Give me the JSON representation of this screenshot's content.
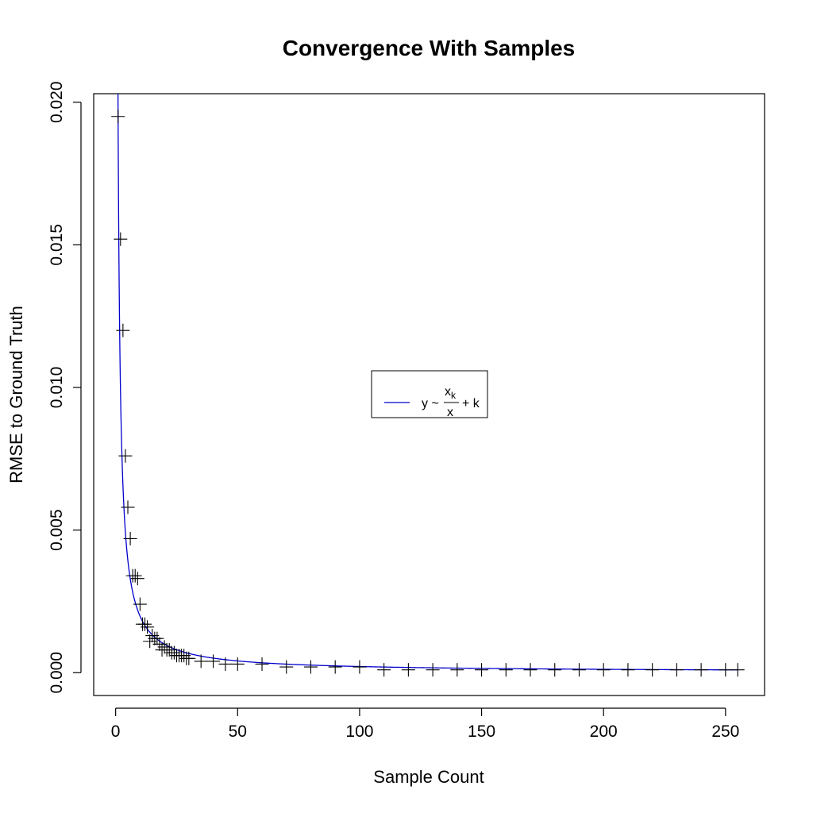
{
  "chart_data": {
    "type": "scatter",
    "title": "Convergence With Samples",
    "xlabel": "Sample Count",
    "ylabel": "RMSE to Ground Truth",
    "xlim": [
      -9,
      266
    ],
    "ylim": [
      -0.0008,
      0.0203
    ],
    "x_ticks": [
      0,
      50,
      100,
      150,
      200,
      250
    ],
    "x_tick_labels": [
      "0",
      "50",
      "100",
      "150",
      "200",
      "250"
    ],
    "y_ticks": [
      0.0,
      0.005,
      0.01,
      0.015,
      0.02
    ],
    "y_tick_labels": [
      "0.000",
      "0.005",
      "0.010",
      "0.015",
      "0.020"
    ],
    "grid": false,
    "legend_position": "center-right",
    "points_color": "#000000",
    "series": [
      {
        "marker": "plus",
        "color": "#000000",
        "x": [
          1,
          2,
          3,
          4,
          5,
          6,
          7,
          8,
          9,
          10,
          11,
          12,
          13,
          14,
          15,
          16,
          17,
          18,
          19,
          20,
          21,
          22,
          23,
          24,
          25,
          26,
          27,
          28,
          29,
          30,
          35,
          40,
          45,
          50,
          60,
          70,
          80,
          90,
          100,
          110,
          120,
          130,
          140,
          150,
          160,
          170,
          180,
          190,
          200,
          210,
          220,
          230,
          240,
          250,
          255
        ],
        "y": [
          0.0195,
          0.0152,
          0.012,
          0.0076,
          0.0058,
          0.0047,
          0.0034,
          0.0034,
          0.0033,
          0.0024,
          0.0017,
          0.0017,
          0.0016,
          0.0011,
          0.0013,
          0.0012,
          0.0012,
          0.001,
          0.0008,
          0.0009,
          0.0008,
          0.0008,
          0.0007,
          0.0007,
          0.0006,
          0.0006,
          0.0006,
          0.0006,
          0.0005,
          0.0005,
          0.0004,
          0.0004,
          0.0003,
          0.0003,
          0.0003,
          0.0002,
          0.0002,
          0.0002,
          0.0002,
          0.0001,
          0.0001,
          0.0001,
          0.0001,
          0.0001,
          0.0001,
          0.0001,
          0.0001,
          0.0001,
          0.0001,
          0.0001,
          0.0001,
          0.0001,
          0.0001,
          0.0001,
          0.0001
        ]
      },
      {
        "name": "y ~ x_k / x + k",
        "type": "line",
        "color": "#0000CC",
        "model": {
          "x_k": 0.0196,
          "k": 2e-05
        }
      }
    ],
    "legend": {
      "y_prefix": "y ~",
      "numerator": "x",
      "numerator_sub": "k",
      "denominator": "x",
      "suffix": "+ k"
    }
  }
}
